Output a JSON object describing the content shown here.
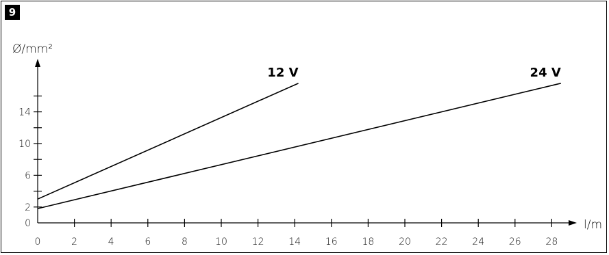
{
  "figure": {
    "number": "9"
  },
  "chart_data": {
    "type": "line",
    "title": "",
    "xlabel": "l/m",
    "ylabel": "Ø/mm²",
    "xlim": [
      0,
      29
    ],
    "ylim": [
      0,
      18
    ],
    "x_ticks": [
      0,
      2,
      4,
      6,
      8,
      10,
      12,
      14,
      16,
      18,
      20,
      22,
      24,
      26,
      28
    ],
    "y_tick_labels": [
      0,
      2,
      6,
      10,
      14
    ],
    "y_tick_marks": [
      2,
      4,
      6,
      8,
      10,
      12,
      14,
      16
    ],
    "grid": false,
    "series": [
      {
        "name": "12 V",
        "x": [
          0,
          14.2
        ],
        "y": [
          3.0,
          17.6
        ]
      },
      {
        "name": "24 V",
        "x": [
          0,
          28.5
        ],
        "y": [
          1.8,
          17.6
        ]
      }
    ],
    "colors": {
      "line": "#000000",
      "axis": "#000000"
    }
  }
}
